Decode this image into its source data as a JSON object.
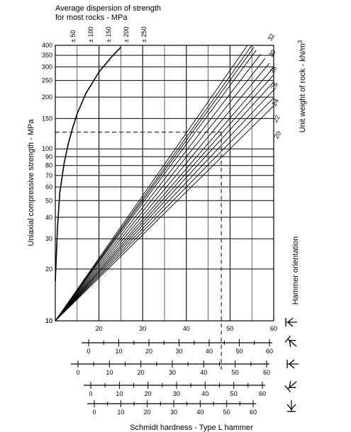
{
  "chart_data": {
    "type": "line",
    "title_lines": [
      "Average dispersion of strength",
      "for most rocks - MPa"
    ],
    "xlabel": "Schmidt hardness - Type L hammer",
    "ylabel": "Uniaxial compressive strength - MPa",
    "right_label": "Unit weight of rock - kN/m",
    "right_label_sup": "3",
    "hammer_label": "Hammer orientation",
    "xlim": [
      10,
      60
    ],
    "ylim": [
      10,
      400
    ],
    "yscale": "log",
    "grid": true,
    "x_ticks": [
      "10",
      "20",
      "30",
      "40",
      "50",
      "60"
    ],
    "y_ticks": [
      "10",
      "20",
      "30",
      "40",
      "50",
      "60",
      "70",
      "80",
      "90",
      "100",
      "150",
      "200",
      "250",
      "300",
      "350",
      "400"
    ],
    "dispersion_labels": [
      "± 50",
      "± 100",
      "± 150",
      "± 200",
      "± 250"
    ],
    "dispersion_curve": {
      "x": [
        10,
        10.5,
        11,
        12,
        13,
        14,
        15,
        17,
        20,
        23,
        25
      ],
      "y": [
        17,
        35,
        55,
        82,
        108,
        133,
        160,
        210,
        280,
        345,
        390
      ]
    },
    "unit_weight_labels": [
      "20",
      "22",
      "24",
      "26",
      "28",
      "30",
      "32"
    ],
    "unit_weight_lines": [
      {
        "unit_weight": 20,
        "end": [
          60,
          178
        ]
      },
      {
        "unit_weight": 21,
        "end": [
          60,
          198
        ]
      },
      {
        "unit_weight": 22,
        "end": [
          60,
          220
        ]
      },
      {
        "unit_weight": 23,
        "end": [
          60,
          245
        ]
      },
      {
        "unit_weight": 24,
        "end": [
          60,
          270
        ]
      },
      {
        "unit_weight": 25,
        "end": [
          60,
          298
        ]
      },
      {
        "unit_weight": 26,
        "end": [
          59,
          315
        ]
      },
      {
        "unit_weight": 27,
        "end": [
          58,
          335
        ]
      },
      {
        "unit_weight": 28,
        "end": [
          57,
          355
        ]
      },
      {
        "unit_weight": 29,
        "end": [
          56,
          375
        ]
      },
      {
        "unit_weight": 30,
        "end": [
          55.5,
          390
        ]
      },
      {
        "unit_weight": 31,
        "end": [
          55,
          400
        ]
      },
      {
        "unit_weight": 32,
        "end": [
          54,
          400
        ]
      }
    ],
    "example": {
      "schmidt_hardness": 48,
      "strength": 125
    },
    "hammer_scales": [
      {
        "ticks": [
          "0",
          "10",
          "20",
          "30",
          "40",
          "50",
          "60"
        ],
        "orientation": "-45°"
      },
      {
        "ticks": [
          "0",
          "10",
          "20",
          "30",
          "40",
          "50",
          "60"
        ],
        "orientation": "0°"
      },
      {
        "ticks": [
          "0",
          "10",
          "20",
          "30",
          "40",
          "50",
          "60"
        ],
        "orientation": "+45°"
      },
      {
        "ticks": [
          "0",
          "10",
          "20",
          "30",
          "40",
          "50",
          "60"
        ],
        "orientation": "+90°"
      }
    ]
  },
  "colors": {
    "ink": "#000000",
    "background": "#ffffff"
  }
}
